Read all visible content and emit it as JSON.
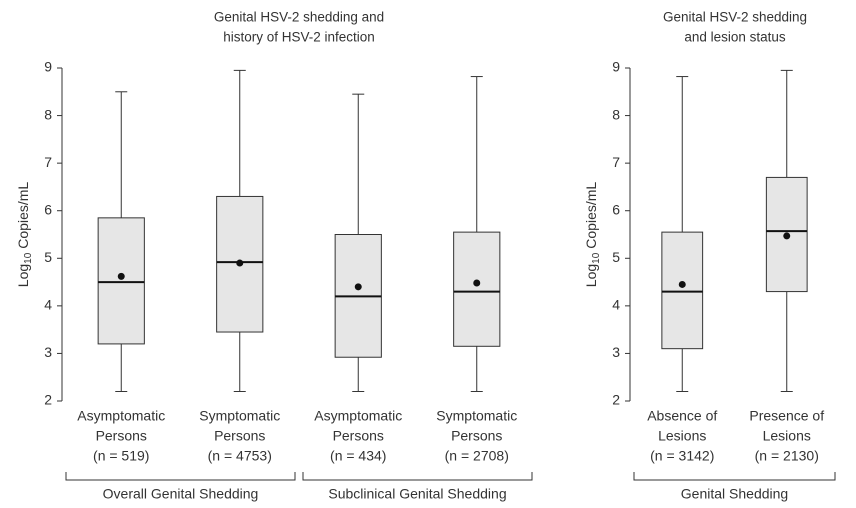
{
  "chart_data": [
    {
      "type": "box",
      "title": [
        "Genital HSV-2 shedding and",
        "history of HSV-2 infection"
      ],
      "ylabel": [
        "Log",
        "10",
        "Copies/mL"
      ],
      "ylim": [
        2,
        9
      ],
      "yticks": [
        2,
        3,
        4,
        5,
        6,
        7,
        8,
        9
      ],
      "box_color": "#e6e6e6",
      "groups": [
        {
          "label": "Overall Genital Shedding",
          "boxes": [
            {
              "category": [
                "Asymptomatic",
                "Persons",
                "(n = 519)"
              ],
              "whisker_low": 2.2,
              "q1": 3.2,
              "median": 4.5,
              "q3": 5.85,
              "whisker_high": 8.5,
              "mean": 4.62
            },
            {
              "category": [
                "Symptomatic",
                "Persons",
                "(n = 4753)"
              ],
              "whisker_low": 2.2,
              "q1": 3.45,
              "median": 4.92,
              "q3": 6.3,
              "whisker_high": 8.95,
              "mean": 4.9
            }
          ]
        },
        {
          "label": "Subclinical Genital Shedding",
          "boxes": [
            {
              "category": [
                "Asymptomatic",
                "Persons",
                "(n = 434)"
              ],
              "whisker_low": 2.2,
              "q1": 2.92,
              "median": 4.2,
              "q3": 5.5,
              "whisker_high": 8.45,
              "mean": 4.4
            },
            {
              "category": [
                "Symptomatic",
                "Persons",
                "(n = 2708)"
              ],
              "whisker_low": 2.2,
              "q1": 3.15,
              "median": 4.3,
              "q3": 5.55,
              "whisker_high": 8.82,
              "mean": 4.48
            }
          ]
        }
      ]
    },
    {
      "type": "box",
      "title": [
        "Genital HSV-2 shedding",
        "and lesion status"
      ],
      "ylabel": [
        "Log",
        "10",
        "Copies/mL"
      ],
      "ylim": [
        2,
        9
      ],
      "yticks": [
        2,
        3,
        4,
        5,
        6,
        7,
        8,
        9
      ],
      "box_color": "#e6e6e6",
      "groups": [
        {
          "label": "Genital Shedding",
          "boxes": [
            {
              "category": [
                "Absence of",
                "Lesions",
                "(n = 3142)"
              ],
              "whisker_low": 2.2,
              "q1": 3.1,
              "median": 4.3,
              "q3": 5.55,
              "whisker_high": 8.82,
              "mean": 4.45
            },
            {
              "category": [
                "Presence of",
                "Lesions",
                "(n = 2130)"
              ],
              "whisker_low": 2.2,
              "q1": 4.3,
              "median": 5.57,
              "q3": 6.7,
              "whisker_high": 8.95,
              "mean": 5.47
            }
          ]
        }
      ]
    }
  ]
}
